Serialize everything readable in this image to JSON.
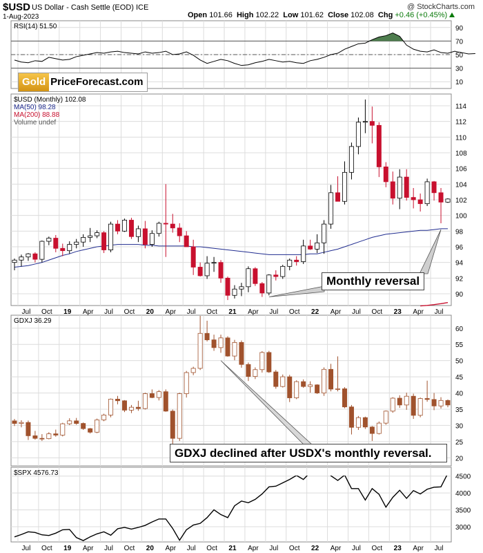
{
  "header": {
    "symbol": "$USD",
    "description": "US Dollar - Cash Settle (EOD) ICE",
    "date": "1-Aug-2023",
    "credit": "@ StockCharts.com",
    "open_label": "Open",
    "open": "101.66",
    "high_label": "High",
    "high": "102.22",
    "low_label": "Low",
    "low": "101.62",
    "close_label": "Close",
    "close": "102.08",
    "chg_label": "Chg",
    "chg": "+0.46 (+0.45%)"
  },
  "logo": {
    "gold": "Gold",
    "rest": "PriceForecast.com"
  },
  "colors": {
    "up": "#ffffff",
    "down": "#c8102e",
    "gdxj": "#a0522d",
    "ma50": "#1f2b8f",
    "ma200": "#c8102e",
    "rsi_fill": "#4e7d4e",
    "grid": "#dcdcdc",
    "text": "#000000"
  },
  "callouts": {
    "usd": "Monthly reversal",
    "gdxj": "GDXJ declined after USDX's monthly reversal."
  },
  "chart_data": [
    {
      "type": "line",
      "panel": "rsi",
      "label": "RSI(14) 51.50",
      "ylim": [
        0,
        100
      ],
      "ticks": [
        10,
        30,
        50,
        70,
        90
      ],
      "levels": [
        70,
        50,
        30
      ],
      "values": [
        42,
        39,
        38,
        41,
        40,
        46,
        44,
        42,
        43,
        47,
        49,
        51,
        53,
        52,
        54,
        55,
        53,
        52,
        51,
        54,
        52,
        53,
        55,
        50,
        51,
        54,
        49,
        42,
        37,
        40,
        43,
        41,
        37,
        34,
        35,
        38,
        40,
        43,
        41,
        39,
        40,
        38,
        37,
        41,
        43,
        46,
        50,
        52,
        58,
        62,
        66,
        67,
        72,
        76,
        78,
        82,
        77,
        64,
        58,
        55,
        54,
        57,
        53,
        52,
        55,
        53,
        51,
        51.5
      ]
    },
    {
      "type": "candlestick",
      "panel": "usd",
      "labels": [
        "$USD (Monthly) 102.08",
        "MA(50) 98.28",
        "MA(200) 88.88",
        "Volume undef"
      ],
      "ylim": [
        88.5,
        115.5
      ],
      "ticks": [
        90,
        92,
        94,
        96,
        98,
        100,
        102,
        104,
        106,
        108,
        110,
        112,
        114
      ],
      "ohlc": [
        [
          94.0,
          94.5,
          93.0,
          94.3
        ],
        [
          94.3,
          95.0,
          93.5,
          94.7
        ],
        [
          94.7,
          95.2,
          94.2,
          95.1
        ],
        [
          95.1,
          95.3,
          94.0,
          94.4
        ],
        [
          94.4,
          96.8,
          94.0,
          96.7
        ],
        [
          96.7,
          97.3,
          96.2,
          97.1
        ],
        [
          97.1,
          97.5,
          95.3,
          95.8
        ],
        [
          95.8,
          96.4,
          94.8,
          95.5
        ],
        [
          95.5,
          96.7,
          95.1,
          96.3
        ],
        [
          96.3,
          97.0,
          95.8,
          96.6
        ],
        [
          96.6,
          97.6,
          96.0,
          97.2
        ],
        [
          97.2,
          98.4,
          96.6,
          97.4
        ],
        [
          97.4,
          98.1,
          97.1,
          97.8
        ],
        [
          97.8,
          98.0,
          95.2,
          95.6
        ],
        [
          95.6,
          99.2,
          95.3,
          98.9
        ],
        [
          98.9,
          99.4,
          97.6,
          98.0
        ],
        [
          98.0,
          99.6,
          97.9,
          99.4
        ],
        [
          99.4,
          99.7,
          97.0,
          97.3
        ],
        [
          97.3,
          98.7,
          96.6,
          98.3
        ],
        [
          98.3,
          99.3,
          95.8,
          96.3
        ],
        [
          96.3,
          98.1,
          96.0,
          97.7
        ],
        [
          97.7,
          99.2,
          97.3,
          99.0
        ],
        [
          99.0,
          104.0,
          94.7,
          98.9
        ],
        [
          98.9,
          100.2,
          97.8,
          98.4
        ],
        [
          98.4,
          99.0,
          96.6,
          97.4
        ],
        [
          97.4,
          98.0,
          96.0,
          96.0
        ],
        [
          96.0,
          96.9,
          92.4,
          93.4
        ],
        [
          93.4,
          94.0,
          92.2,
          92.3
        ],
        [
          92.3,
          94.8,
          91.9,
          93.9
        ],
        [
          93.9,
          94.7,
          92.8,
          94.0
        ],
        [
          94.0,
          94.3,
          91.4,
          92.0
        ],
        [
          92.0,
          92.2,
          89.2,
          89.8
        ],
        [
          89.8,
          91.1,
          89.4,
          90.6
        ],
        [
          90.6,
          91.4,
          89.7,
          90.9
        ],
        [
          90.9,
          93.5,
          90.2,
          93.2
        ],
        [
          93.2,
          93.4,
          91.0,
          91.3
        ],
        [
          91.3,
          91.5,
          89.6,
          90.1
        ],
        [
          90.1,
          92.5,
          89.8,
          92.4
        ],
        [
          92.4,
          93.0,
          91.7,
          92.2
        ],
        [
          92.2,
          93.7,
          91.9,
          93.5
        ],
        [
          93.5,
          94.5,
          93.0,
          94.3
        ],
        [
          94.3,
          94.8,
          93.6,
          94.1
        ],
        [
          94.1,
          96.9,
          93.8,
          96.1
        ],
        [
          96.1,
          96.9,
          95.6,
          95.7
        ],
        [
          95.7,
          97.6,
          95.2,
          96.5
        ],
        [
          96.5,
          99.4,
          95.1,
          98.9
        ],
        [
          98.9,
          103.9,
          98.3,
          102.9
        ],
        [
          102.9,
          105.0,
          101.8,
          101.8
        ],
        [
          101.8,
          106.9,
          101.4,
          105.5
        ],
        [
          105.5,
          109.3,
          104.6,
          108.8
        ],
        [
          108.8,
          112.5,
          107.8,
          111.9
        ],
        [
          111.9,
          114.8,
          110.5,
          112.0
        ],
        [
          112.0,
          113.9,
          109.2,
          111.5
        ],
        [
          111.5,
          111.9,
          104.9,
          106.2
        ],
        [
          106.2,
          106.8,
          103.6,
          104.3
        ],
        [
          104.3,
          105.6,
          101.4,
          102.2
        ],
        [
          102.2,
          105.9,
          100.8,
          104.9
        ],
        [
          104.9,
          105.9,
          101.9,
          102.3
        ],
        [
          102.3,
          103.5,
          100.9,
          102.0
        ],
        [
          102.0,
          102.8,
          100.5,
          101.5
        ],
        [
          101.5,
          104.7,
          101.2,
          104.3
        ],
        [
          104.3,
          104.4,
          101.9,
          102.9
        ],
        [
          102.9,
          103.5,
          99.0,
          101.7
        ],
        [
          101.7,
          102.2,
          101.6,
          102.1
        ]
      ],
      "ma50": [
        93.4,
        93.5,
        93.6,
        93.8,
        94.0,
        94.3,
        94.6,
        94.9,
        95.1,
        95.4,
        95.6,
        95.8,
        96.0,
        96.1,
        96.2,
        96.3,
        96.3,
        96.3,
        96.3,
        96.2,
        96.2,
        96.1,
        96.1,
        96.1,
        96.1,
        96.1,
        96.0,
        96.0,
        95.9,
        95.8,
        95.7,
        95.6,
        95.5,
        95.4,
        95.3,
        95.2,
        95.1,
        95.0,
        95.0,
        95.0,
        95.0,
        95.0,
        95.0,
        95.1,
        95.1,
        95.3,
        95.5,
        95.7,
        96.0,
        96.3,
        96.6,
        96.9,
        97.2,
        97.4,
        97.6,
        97.7,
        97.8,
        97.9,
        98.0,
        98.1,
        98.1,
        98.2,
        98.3,
        98.3
      ],
      "ma200": [
        [
          59,
          88.45
        ],
        [
          60,
          88.52
        ],
        [
          61,
          88.62
        ],
        [
          62,
          88.74
        ],
        [
          63,
          88.88
        ]
      ]
    },
    {
      "type": "candlestick",
      "panel": "gdxj",
      "label": "GDXJ 36.29",
      "ylim": [
        17.5,
        64
      ],
      "ticks": [
        20,
        25,
        30,
        35,
        40,
        45,
        50,
        55,
        60
      ],
      "ohlc": [
        [
          31.4,
          32.0,
          29.8,
          30.6
        ],
        [
          30.6,
          31.6,
          29.4,
          30.9
        ],
        [
          30.9,
          31.5,
          25.5,
          26.8
        ],
        [
          26.8,
          28.3,
          25.6,
          26.0
        ],
        [
          26.0,
          27.3,
          25.2,
          25.9
        ],
        [
          25.9,
          27.9,
          25.7,
          27.4
        ],
        [
          27.4,
          28.7,
          26.5,
          27.0
        ],
        [
          27.0,
          30.8,
          26.6,
          30.5
        ],
        [
          30.5,
          32.2,
          30.1,
          31.4
        ],
        [
          31.4,
          32.3,
          30.2,
          30.6
        ],
        [
          30.6,
          30.9,
          28.6,
          29.0
        ],
        [
          29.0,
          29.2,
          27.5,
          27.9
        ],
        [
          27.9,
          32.1,
          27.6,
          31.7
        ],
        [
          31.7,
          33.6,
          31.3,
          33.2
        ],
        [
          33.2,
          38.3,
          32.5,
          38.1
        ],
        [
          38.1,
          39.1,
          36.5,
          37.6
        ],
        [
          37.6,
          37.8,
          34.1,
          34.7
        ],
        [
          34.7,
          36.3,
          33.8,
          35.6
        ],
        [
          35.6,
          37.6,
          34.5,
          35.2
        ],
        [
          35.2,
          40.1,
          34.9,
          39.8
        ],
        [
          39.8,
          41.1,
          38.4,
          38.6
        ],
        [
          38.6,
          40.9,
          37.7,
          40.4
        ],
        [
          40.4,
          41.1,
          34.2,
          34.4
        ],
        [
          34.4,
          34.9,
          20.5,
          26.0
        ],
        [
          26.0,
          40.1,
          25.2,
          39.8
        ],
        [
          39.8,
          46.8,
          38.6,
          46.3
        ],
        [
          46.3,
          48.1,
          45.5,
          47.6
        ],
        [
          47.6,
          63.8,
          47.1,
          58.4
        ],
        [
          58.4,
          62.3,
          55.9,
          56.4
        ],
        [
          56.4,
          58.0,
          53.0,
          54.0
        ],
        [
          54.0,
          58.0,
          52.4,
          57.0
        ],
        [
          57.0,
          57.5,
          51.2,
          51.4
        ],
        [
          51.4,
          56.4,
          50.1,
          55.6
        ],
        [
          55.6,
          56.2,
          47.8,
          48.8
        ],
        [
          48.8,
          49.4,
          43.7,
          45.1
        ],
        [
          45.1,
          47.9,
          44.3,
          47.2
        ],
        [
          47.2,
          52.9,
          46.3,
          52.5
        ],
        [
          52.5,
          53.0,
          46.2,
          46.5
        ],
        [
          46.5,
          47.1,
          41.3,
          42.0
        ],
        [
          42.0,
          45.7,
          41.7,
          45.0
        ],
        [
          45.0,
          45.6,
          37.2,
          38.5
        ],
        [
          38.5,
          43.9,
          38.1,
          43.5
        ],
        [
          43.5,
          44.2,
          41.6,
          42.0
        ],
        [
          42.0,
          43.6,
          40.1,
          42.5
        ],
        [
          42.5,
          42.7,
          39.7,
          40.0
        ],
        [
          40.0,
          47.9,
          39.1,
          47.3
        ],
        [
          47.3,
          49.0,
          40.5,
          41.2
        ],
        [
          41.2,
          51.3,
          40.5,
          41.3
        ],
        [
          41.3,
          41.8,
          35.3,
          35.7
        ],
        [
          35.7,
          36.3,
          27.2,
          29.4
        ],
        [
          29.4,
          32.9,
          28.6,
          32.4
        ],
        [
          32.4,
          32.7,
          28.9,
          29.5
        ],
        [
          29.5,
          29.8,
          25.2,
          27.5
        ],
        [
          27.5,
          31.2,
          27.2,
          30.7
        ],
        [
          30.7,
          34.6,
          30.2,
          34.4
        ],
        [
          34.4,
          38.7,
          33.9,
          38.4
        ],
        [
          38.4,
          39.3,
          35.4,
          36.3
        ],
        [
          36.3,
          40.1,
          34.8,
          39.0
        ],
        [
          39.0,
          39.8,
          32.0,
          33.1
        ],
        [
          33.1,
          38.6,
          32.5,
          38.3
        ],
        [
          38.3,
          43.8,
          37.3,
          38.0
        ],
        [
          38.0,
          40.0,
          34.7,
          36.0
        ],
        [
          36.0,
          38.7,
          35.2,
          37.7
        ],
        [
          37.7,
          38.0,
          35.6,
          36.3
        ]
      ]
    },
    {
      "type": "line",
      "panel": "spx",
      "label": "$SPX 4576.73",
      "ylim": [
        2550,
        4760
      ],
      "ticks": [
        3000,
        3500,
        4000,
        4500
      ],
      "values": [
        2700,
        2770,
        2850,
        2830,
        2760,
        2740,
        2810,
        2910,
        2920,
        2680,
        2590,
        2700,
        2790,
        2850,
        2750,
        2940,
        2980,
        2930,
        2980,
        3040,
        3140,
        3230,
        3230,
        2950,
        2600,
        2910,
        3050,
        3100,
        3270,
        3500,
        3360,
        3270,
        3620,
        3760,
        3710,
        3810,
        3970,
        4180,
        4200,
        4300,
        4400,
        4520,
        4400,
        4610,
        4580,
        4770,
        4510,
        4370,
        4530,
        4130,
        4130,
        3790,
        4130,
        3960,
        3580,
        3870,
        4080,
        3840,
        4070,
        3970,
        4110,
        4170,
        4180,
        4580
      ],
      "ylim_visible_max": 4640
    }
  ],
  "x_axis": {
    "labels": [
      "Jul",
      "Oct",
      "19",
      "Apr",
      "Jul",
      "Oct",
      "20",
      "Apr",
      "Jul",
      "Oct",
      "21",
      "Apr",
      "Jul",
      "Oct",
      "22",
      "Apr",
      "Jul",
      "Oct",
      "23",
      "Apr",
      "Jul"
    ],
    "major": [
      "19",
      "20",
      "21",
      "22",
      "23"
    ]
  }
}
